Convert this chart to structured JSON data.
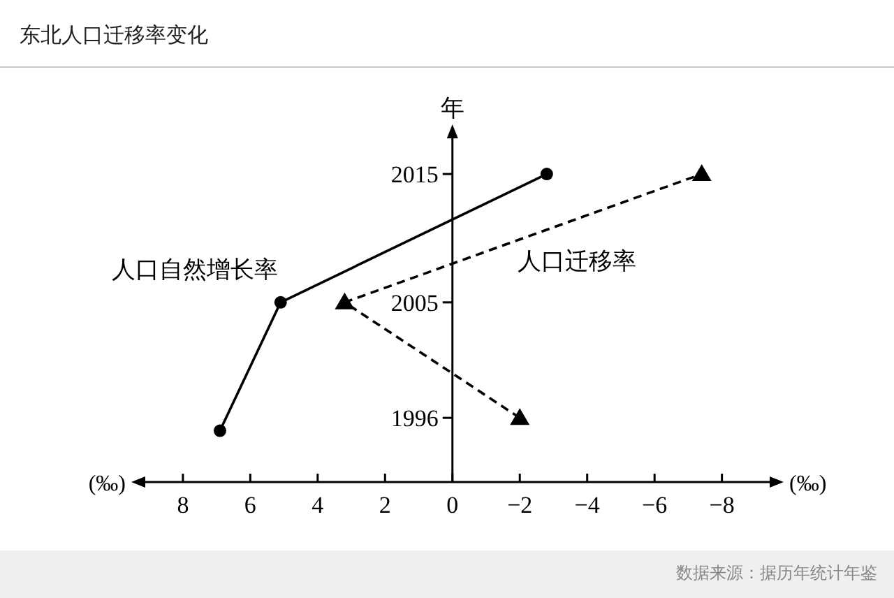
{
  "chart_data": {
    "type": "line",
    "title": "东北人口迁移率变化",
    "xlabel": "(‰)",
    "ylabel": "年",
    "xlim": [
      9.2,
      -9.5
    ],
    "ylim": [
      1991,
      2018
    ],
    "xticks": [
      8,
      6,
      4,
      2,
      0,
      {
        "value": -2,
        "label": "−2"
      },
      {
        "value": -4,
        "label": "−4"
      },
      {
        "value": -6,
        "label": "−6"
      },
      {
        "value": -8,
        "label": "−8"
      }
    ],
    "yticks": [
      1996,
      2005,
      2015
    ],
    "grid": false,
    "series": [
      {
        "name": "人口自然增长率",
        "color": "#000000",
        "x": [
          6.9,
          5.1,
          -2.8
        ],
        "values": [
          1995,
          2005,
          2015
        ],
        "marker": "circle",
        "line_style": "solid"
      },
      {
        "name": "人口迁移率",
        "color": "#000000",
        "x": [
          -2.0,
          3.2,
          -7.4
        ],
        "values": [
          1996,
          2005,
          2015
        ],
        "marker": "triangle",
        "line_style": "dashed"
      }
    ],
    "annotations": [
      "数据来源：据历年统计年鉴"
    ]
  }
}
